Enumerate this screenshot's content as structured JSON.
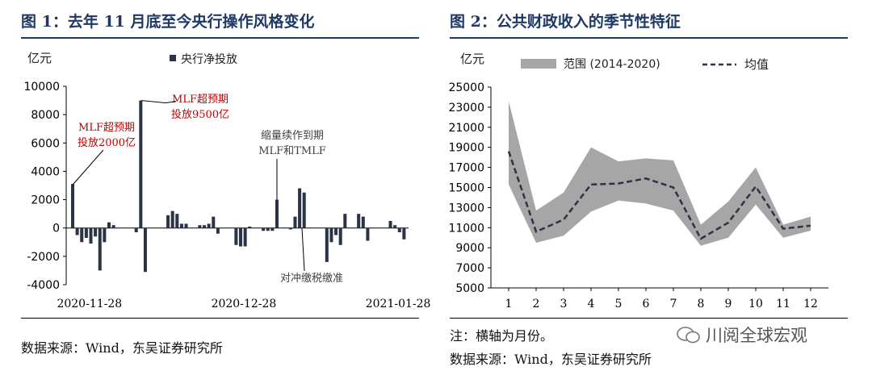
{
  "left": {
    "title": "图 1：去年 11 月底至今央行操作风格变化",
    "source": "数据来源：Wind，东吴证券研究所"
  },
  "right": {
    "title": "图 2：公共财政收入的季节性特征",
    "note": "注：横轴为月份。",
    "source": "数据来源：Wind，东吴证券研究所"
  },
  "watermark": "川阅全球宏观",
  "colors": {
    "title": "#1f3864",
    "bar": "#2b3347",
    "band": "#a6a6a6",
    "annotation_red": "#c00000",
    "annotation_gray": "#404040"
  },
  "chart_data": [
    {
      "type": "bar",
      "unit_label": "亿元",
      "series": [
        {
          "name": "央行净投放",
          "values": [
            3100,
            -500,
            -1000,
            -700,
            -1100,
            -600,
            -3000,
            -1000,
            400,
            200,
            0,
            0,
            0,
            0,
            -300,
            9000,
            -3100,
            0,
            0,
            0,
            0,
            900,
            1200,
            1000,
            300,
            300,
            0,
            0,
            200,
            200,
            300,
            800,
            -400,
            0,
            0,
            0,
            -1200,
            -1300,
            -1300,
            100,
            0,
            0,
            -200,
            -200,
            -200,
            2000,
            0,
            0,
            -100,
            800,
            2800,
            2500,
            0,
            0,
            0,
            0,
            -2400,
            -1000,
            -500,
            -1200,
            1000,
            0,
            0,
            1000,
            800,
            -900,
            0,
            0,
            0,
            0,
            500,
            200,
            -300,
            -800
          ]
        }
      ],
      "x_tick_labels": [
        "2020-11-28",
        "2020-12-28",
        "2021-01-28"
      ],
      "x_tick_positions": [
        0,
        34,
        68
      ],
      "yticks": [
        -4000,
        -2000,
        0,
        2000,
        4000,
        6000,
        8000,
        10000
      ],
      "ylim": [
        -4000,
        10000
      ],
      "legend_position": "top",
      "annotations": [
        {
          "line1": "MLF超预期",
          "line2": "投放2000亿",
          "color": "red"
        },
        {
          "line1": "MLF超预期",
          "line2": "投放9500亿",
          "color": "red"
        },
        {
          "line1": "缩量续作到期",
          "line2": "MLF和TMLF",
          "color": "gray"
        },
        {
          "line1": "对冲缴税缴准",
          "line2": "",
          "color": "gray"
        }
      ]
    },
    {
      "type": "area",
      "unit_label": "亿元",
      "x": [
        1,
        2,
        3,
        4,
        5,
        6,
        7,
        8,
        9,
        10,
        11,
        12
      ],
      "series": [
        {
          "name": "范围 (2014-2020)",
          "kind": "band",
          "low": [
            15300,
            9500,
            10200,
            12600,
            13700,
            13400,
            12700,
            9200,
            10000,
            13300,
            10000,
            10700
          ],
          "high": [
            23600,
            12700,
            14500,
            19000,
            17600,
            17900,
            17700,
            11300,
            13600,
            17000,
            11300,
            12100
          ]
        },
        {
          "name": "均值",
          "kind": "dashed-line",
          "values": [
            18600,
            10600,
            11800,
            15300,
            15400,
            15900,
            15000,
            9900,
            11500,
            15100,
            10900,
            11200
          ]
        }
      ],
      "yticks": [
        5000,
        7000,
        9000,
        11000,
        13000,
        15000,
        17000,
        19000,
        21000,
        23000,
        25000
      ],
      "ylim": [
        5000,
        25000
      ],
      "legend_position": "top"
    }
  ]
}
